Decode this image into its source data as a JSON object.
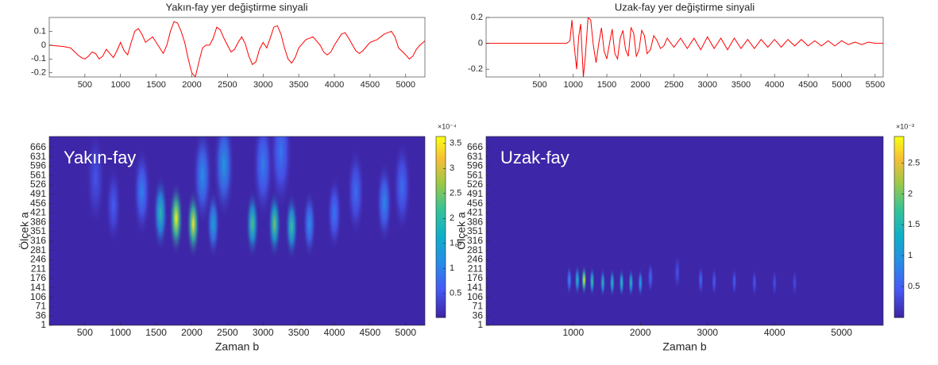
{
  "chart_data": [
    {
      "type": "line",
      "title": "Yakın-fay yer değiştirme sinyali",
      "color": "#ff0000",
      "xlim": [
        0,
        5270
      ],
      "xticks": [
        500,
        1000,
        1500,
        2000,
        2500,
        3000,
        3500,
        4000,
        4500,
        5000
      ],
      "ylim": [
        -0.23,
        0.2
      ],
      "yticks": [
        -0.2,
        -0.1,
        0,
        0.1
      ],
      "x": [
        0,
        100,
        200,
        300,
        400,
        450,
        500,
        550,
        600,
        650,
        700,
        750,
        800,
        850,
        900,
        950,
        1000,
        1050,
        1100,
        1150,
        1200,
        1250,
        1300,
        1350,
        1400,
        1450,
        1500,
        1550,
        1600,
        1650,
        1700,
        1750,
        1800,
        1850,
        1900,
        1950,
        2000,
        2050,
        2100,
        2150,
        2200,
        2250,
        2300,
        2350,
        2400,
        2450,
        2500,
        2550,
        2600,
        2650,
        2700,
        2750,
        2800,
        2850,
        2900,
        2950,
        3000,
        3050,
        3100,
        3150,
        3200,
        3250,
        3300,
        3350,
        3400,
        3450,
        3500,
        3600,
        3700,
        3800,
        3850,
        3900,
        3950,
        4000,
        4100,
        4150,
        4200,
        4300,
        4350,
        4400,
        4500,
        4600,
        4700,
        4800,
        4850,
        4900,
        5000,
        5050,
        5100,
        5150,
        5200,
        5270
      ],
      "values": [
        0,
        -0.005,
        -0.01,
        -0.02,
        -0.07,
        -0.09,
        -0.1,
        -0.08,
        -0.05,
        -0.06,
        -0.1,
        -0.08,
        -0.03,
        -0.06,
        -0.09,
        -0.04,
        0.02,
        -0.04,
        -0.07,
        0.02,
        0.1,
        0.12,
        0.08,
        0.02,
        0.04,
        0.06,
        0.02,
        -0.02,
        -0.06,
        0,
        0.1,
        0.17,
        0.16,
        0.1,
        0.02,
        -0.1,
        -0.2,
        -0.23,
        -0.12,
        -0.02,
        0,
        0,
        0.05,
        0.13,
        0.11,
        0.05,
        0,
        -0.05,
        -0.03,
        0.02,
        0.06,
        0.01,
        -0.08,
        -0.14,
        -0.12,
        -0.03,
        0.02,
        -0.02,
        0.05,
        0.13,
        0.14,
        0.08,
        -0.02,
        -0.1,
        -0.13,
        -0.09,
        -0.02,
        0.04,
        0.06,
        0,
        -0.05,
        -0.07,
        -0.05,
        0,
        0.08,
        0.09,
        0.05,
        -0.04,
        -0.06,
        -0.04,
        0.02,
        0.04,
        0.08,
        0.1,
        0.06,
        -0.02,
        -0.07,
        -0.1,
        -0.08,
        -0.03,
        0,
        0.03
      ]
    },
    {
      "type": "line",
      "title": "Uzak-fay yer değiştirme sinyali",
      "color": "#ff0000",
      "xlim": [
        -300,
        5620
      ],
      "xticks": [
        500,
        1000,
        1500,
        2000,
        2500,
        3000,
        3500,
        4000,
        4500,
        5000,
        5500
      ],
      "ylim": [
        -0.26,
        0.2
      ],
      "yticks": [
        -0.2,
        0,
        0.2
      ],
      "x": [
        -300,
        500,
        900,
        950,
        980,
        1020,
        1050,
        1080,
        1110,
        1150,
        1180,
        1220,
        1260,
        1300,
        1340,
        1380,
        1420,
        1460,
        1500,
        1540,
        1580,
        1620,
        1660,
        1700,
        1740,
        1780,
        1820,
        1860,
        1900,
        1940,
        1980,
        2020,
        2060,
        2100,
        2150,
        2200,
        2250,
        2300,
        2350,
        2400,
        2500,
        2600,
        2700,
        2800,
        2900,
        3000,
        3100,
        3200,
        3300,
        3400,
        3500,
        3600,
        3700,
        3800,
        3900,
        4000,
        4100,
        4200,
        4300,
        4400,
        4500,
        4600,
        4700,
        4800,
        4900,
        5000,
        5100,
        5200,
        5300,
        5400,
        5500,
        5620
      ],
      "values": [
        0,
        0,
        0,
        0.02,
        0.18,
        -0.05,
        -0.2,
        0.05,
        0.15,
        -0.26,
        -0.1,
        0.2,
        0.18,
        -0.02,
        -0.15,
        0,
        0.12,
        -0.06,
        -0.12,
        0,
        0.11,
        -0.08,
        -0.12,
        0.04,
        0.1,
        -0.05,
        -0.1,
        0.12,
        0.08,
        -0.1,
        -0.05,
        0.1,
        0.06,
        -0.08,
        -0.05,
        0.06,
        0.02,
        -0.04,
        -0.02,
        0.04,
        -0.03,
        0.04,
        -0.04,
        0.04,
        -0.05,
        0.05,
        -0.04,
        0.04,
        -0.05,
        0.04,
        -0.04,
        0.03,
        -0.04,
        0.03,
        -0.03,
        0.03,
        -0.03,
        0.03,
        -0.02,
        0.03,
        -0.02,
        0.02,
        -0.02,
        0.02,
        -0.02,
        0.02,
        -0.01,
        0.01,
        -0.01,
        0.01,
        0,
        0
      ]
    },
    {
      "type": "heatmap",
      "annotation": "Yakın-fay",
      "xlabel": "Zaman b",
      "ylabel": "Ölçek a",
      "colormap": "parula",
      "xlim": [
        0,
        5270
      ],
      "xticks": [
        500,
        1000,
        1500,
        2000,
        2500,
        3000,
        3500,
        4000,
        4500,
        5000
      ],
      "ylim": [
        1,
        707
      ],
      "yticks": [
        1,
        36,
        71,
        106,
        141,
        176,
        211,
        246,
        281,
        316,
        351,
        386,
        421,
        456,
        491,
        526,
        561,
        596,
        631,
        666
      ],
      "clim": [
        0.02,
        3.64
      ],
      "cticks": [
        0.5,
        1,
        1.5,
        2,
        2.5,
        3,
        3.5
      ],
      "cmultiplier": "×10⁻⁴",
      "peaks": [
        {
          "x": 1780,
          "y": 400,
          "value": 3.6
        },
        {
          "x": 2020,
          "y": 380,
          "value": 3.5
        },
        {
          "x": 1560,
          "y": 420,
          "value": 2.0
        },
        {
          "x": 2300,
          "y": 380,
          "value": 1.5
        },
        {
          "x": 2850,
          "y": 380,
          "value": 2.3
        },
        {
          "x": 3160,
          "y": 380,
          "value": 2.5
        },
        {
          "x": 3400,
          "y": 370,
          "value": 2.2
        },
        {
          "x": 3650,
          "y": 380,
          "value": 1.2
        },
        {
          "x": 2450,
          "y": 600,
          "value": 1.3
        },
        {
          "x": 1300,
          "y": 500,
          "value": 1.0
        },
        {
          "x": 4000,
          "y": 420,
          "value": 0.9
        },
        {
          "x": 4300,
          "y": 500,
          "value": 0.8
        },
        {
          "x": 4700,
          "y": 460,
          "value": 1.1
        },
        {
          "x": 4950,
          "y": 520,
          "value": 0.8
        },
        {
          "x": 2150,
          "y": 560,
          "value": 1.2
        },
        {
          "x": 900,
          "y": 450,
          "value": 0.6
        },
        {
          "x": 650,
          "y": 550,
          "value": 0.5
        },
        {
          "x": 3000,
          "y": 600,
          "value": 1.0
        },
        {
          "x": 3250,
          "y": 650,
          "value": 0.9
        }
      ]
    },
    {
      "type": "heatmap",
      "annotation": "Uzak-fay",
      "xlabel": "Zaman b",
      "ylabel": "Ölçek a",
      "colormap": "parula",
      "xlim": [
        -300,
        5620
      ],
      "xticks": [
        1000,
        2000,
        3000,
        4000,
        5000
      ],
      "ylim": [
        1,
        707
      ],
      "yticks": [
        1,
        36,
        71,
        106,
        141,
        176,
        211,
        246,
        281,
        316,
        351,
        386,
        421,
        456,
        491,
        526,
        561,
        596,
        631,
        666
      ],
      "clim": [
        0,
        2.93
      ],
      "cticks": [
        0.5,
        1,
        1.5,
        2,
        2.5
      ],
      "cmultiplier": "×10⁻³",
      "peaks": [
        {
          "x": 1160,
          "y": 170,
          "value": 2.9
        },
        {
          "x": 1060,
          "y": 170,
          "value": 1.6
        },
        {
          "x": 1280,
          "y": 165,
          "value": 1.8
        },
        {
          "x": 1440,
          "y": 160,
          "value": 1.5
        },
        {
          "x": 1580,
          "y": 160,
          "value": 1.6
        },
        {
          "x": 1720,
          "y": 160,
          "value": 1.7
        },
        {
          "x": 1860,
          "y": 160,
          "value": 1.6
        },
        {
          "x": 2000,
          "y": 160,
          "value": 1.2
        },
        {
          "x": 940,
          "y": 170,
          "value": 0.9
        },
        {
          "x": 2150,
          "y": 180,
          "value": 0.6
        },
        {
          "x": 2900,
          "y": 170,
          "value": 0.6
        },
        {
          "x": 3100,
          "y": 165,
          "value": 0.5
        },
        {
          "x": 3400,
          "y": 165,
          "value": 0.5
        },
        {
          "x": 3700,
          "y": 160,
          "value": 0.45
        },
        {
          "x": 4000,
          "y": 160,
          "value": 0.4
        },
        {
          "x": 4300,
          "y": 160,
          "value": 0.35
        },
        {
          "x": 2550,
          "y": 200,
          "value": 0.4
        }
      ]
    }
  ]
}
